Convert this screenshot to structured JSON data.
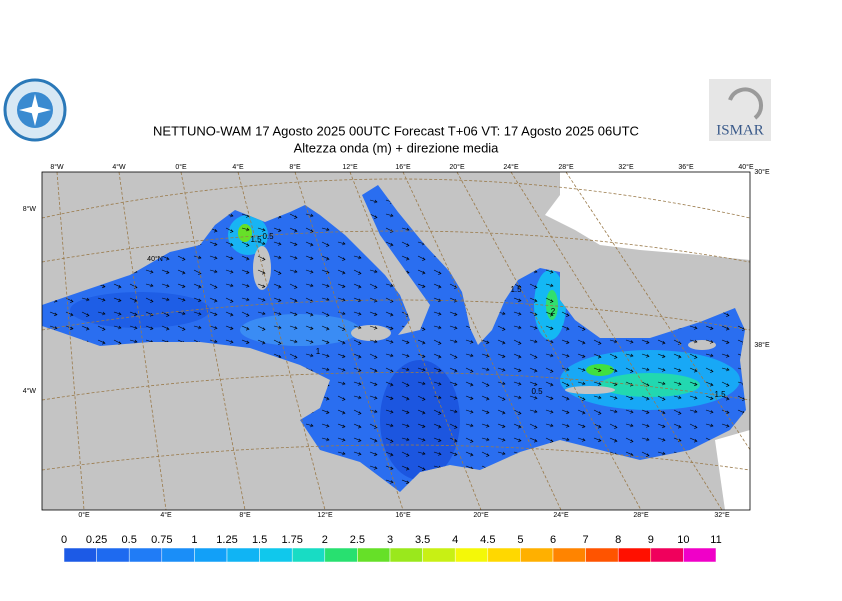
{
  "header": {
    "title": "NETTUNO-WAM  17   Agosto  2025 00UTC Forecast T+06 VT: 17   Agosto  2025 06UTC",
    "subtitle": "Altezza onda (m) + direzione media",
    "logo_right": "ISMAR"
  },
  "map": {
    "top_labels": [
      "8°W",
      "4°W",
      "0°E",
      "4°E",
      "8°E",
      "12°E",
      "16°E",
      "20°E",
      "24°E",
      "28°E",
      "32°E",
      "36°E",
      "40°E"
    ],
    "bottom_labels": [
      "0°E",
      "4°E",
      "8°E",
      "12°E",
      "16°E",
      "20°E",
      "24°E",
      "28°E",
      "32°E"
    ],
    "left_labels": [
      "8°W",
      "4°W"
    ],
    "inner_labels": [
      "40°N"
    ],
    "right_labels": [
      "30°E",
      "38°E"
    ],
    "contour_labels": [
      "0.5",
      "1.5",
      "1.5",
      "2",
      "1",
      "0.5",
      "1.5"
    ]
  },
  "colorbar": {
    "labels": [
      "0",
      "0.25",
      "0.5",
      "0.75",
      "1",
      "1.25",
      "1.5",
      "1.75",
      "2",
      "2.5",
      "3",
      "3.5",
      "4",
      "4.5",
      "5",
      "6",
      "7",
      "8",
      "9",
      "10",
      "11"
    ],
    "colors": [
      "#1c5ae6",
      "#1e6af0",
      "#207cf6",
      "#1a8ef8",
      "#12a0f8",
      "#10b4f4",
      "#10c8ec",
      "#18dcc4",
      "#28e070",
      "#66e028",
      "#9ae81c",
      "#c8f014",
      "#f4f808",
      "#ffd800",
      "#ffb000",
      "#ff8400",
      "#ff5400",
      "#ff1000",
      "#f0005c",
      "#f000c8"
    ]
  }
}
